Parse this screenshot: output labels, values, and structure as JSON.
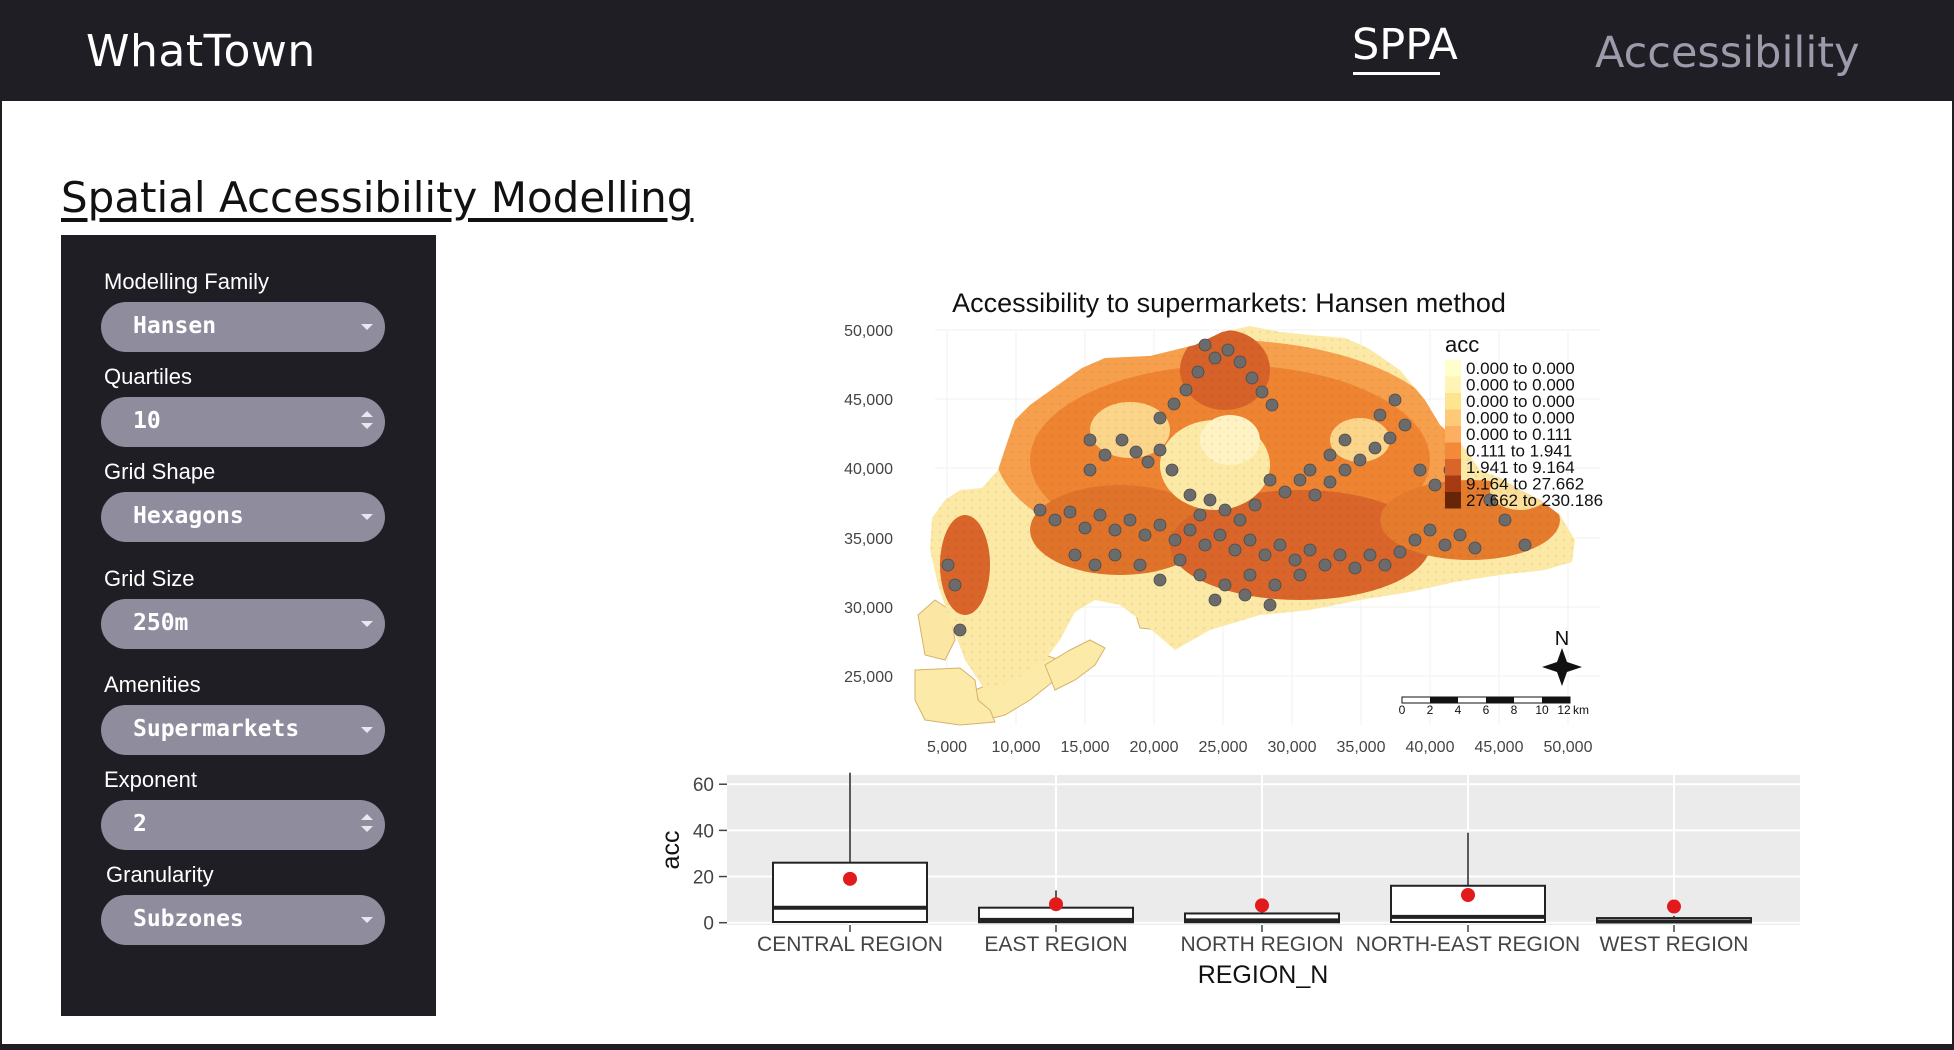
{
  "header": {
    "brand": "WhatTown",
    "nav": [
      {
        "label": "SPPA",
        "active": true
      },
      {
        "label": "Accessibility",
        "active": false
      }
    ]
  },
  "page": {
    "title": "Spatial Accessibility Modelling"
  },
  "controls": [
    {
      "label": "Modelling Family",
      "value": "Hansen",
      "kind": "select"
    },
    {
      "label": "Quartiles",
      "value": "10",
      "kind": "number"
    },
    {
      "label": "Grid Shape",
      "value": "Hexagons",
      "kind": "select"
    },
    {
      "label": "Grid Size",
      "value": "250m",
      "kind": "select"
    },
    {
      "label": "Amenities",
      "value": "Supermarkets",
      "kind": "select"
    },
    {
      "label": "Exponent",
      "value": "2",
      "kind": "number"
    },
    {
      "label": "Granularity",
      "value": "Subzones",
      "kind": "select"
    }
  ],
  "colors": {
    "bar": "#1e1e24",
    "control_fill": "#8f8c9e",
    "nav_inactive": "#9d9aac",
    "boxplot_panel": "#ebebeb",
    "mean_point": "#e31a1c",
    "supermarket_point": "#6b6b6b"
  },
  "chart_data": [
    {
      "type": "map",
      "title": "Accessibility to supermarkets: Hansen method",
      "x_ticks": [
        "5,000",
        "10,000",
        "15,000",
        "20,000",
        "25,000",
        "30,000",
        "35,000",
        "40,000",
        "45,000",
        "50,000"
      ],
      "y_ticks": [
        "50,000",
        "45,000",
        "40,000",
        "35,000",
        "30,000",
        "25,000"
      ],
      "legend_title": "acc",
      "legend_position": "top-right",
      "legend": [
        {
          "label": "0.000 to 0.000",
          "color": "#ffffcc"
        },
        {
          "label": "0.000 to 0.000",
          "color": "#fff3b6"
        },
        {
          "label": "0.000 to 0.000",
          "color": "#fee391"
        },
        {
          "label": "0.000 to 0.000",
          "color": "#fec978"
        },
        {
          "label": "0.000 to 0.111",
          "color": "#fdae61"
        },
        {
          "label": "0.111 to 1.941",
          "color": "#f38a3a"
        },
        {
          "label": "1.941 to 9.164",
          "color": "#d9652a"
        },
        {
          "label": "9.164 to 27.662",
          "color": "#a63a12"
        },
        {
          "label": "27.662 to 230.186",
          "color": "#662506"
        }
      ],
      "scalebar_labels": [
        "0",
        "2",
        "4",
        "6",
        "8",
        "10",
        "12"
      ],
      "scalebar_unit": "km",
      "north_label": "N"
    },
    {
      "type": "boxplot",
      "xlabel": "REGION_N",
      "ylabel": "acc",
      "yticks": [
        0,
        20,
        40,
        60
      ],
      "ylim": [
        -1,
        64
      ],
      "categories": [
        "CENTRAL REGION",
        "EAST REGION",
        "NORTH REGION",
        "NORTH-EAST REGION",
        "WEST REGION"
      ],
      "boxes": [
        {
          "q1": 0.3,
          "median": 6.5,
          "q3": 26,
          "whisker_low": 0,
          "whisker_high": 65,
          "mean": 19
        },
        {
          "q1": 0.2,
          "median": 1.2,
          "q3": 6.5,
          "whisker_low": 0,
          "whisker_high": 14,
          "mean": 8
        },
        {
          "q1": 0.2,
          "median": 1.0,
          "q3": 4.0,
          "whisker_low": 0,
          "whisker_high": 6,
          "mean": 7.5
        },
        {
          "q1": 0.3,
          "median": 2.5,
          "q3": 16,
          "whisker_low": 0,
          "whisker_high": 39,
          "mean": 12
        },
        {
          "q1": 0.1,
          "median": 0.5,
          "q3": 2.0,
          "whisker_low": 0,
          "whisker_high": 3,
          "mean": 7
        }
      ]
    }
  ]
}
